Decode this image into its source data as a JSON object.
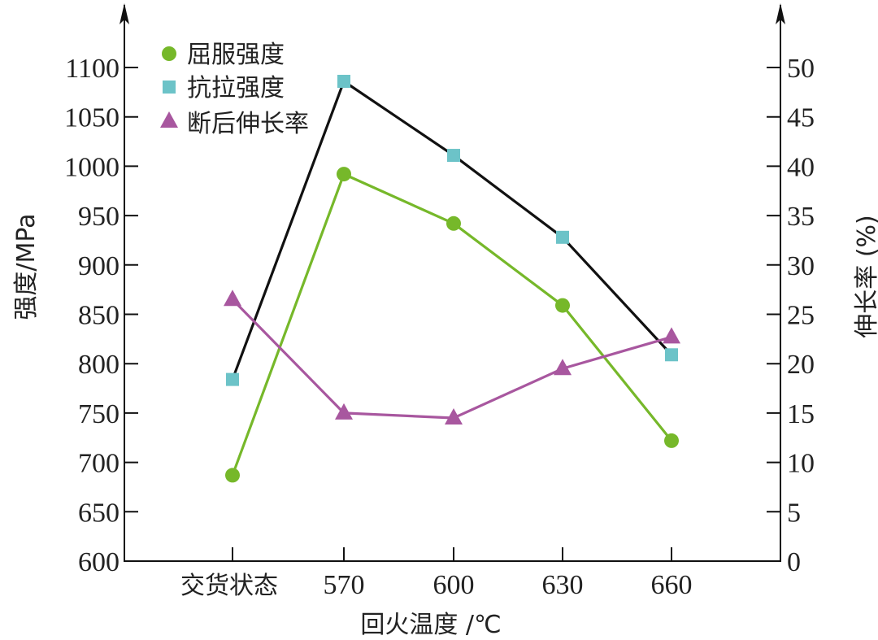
{
  "chart_data": {
    "type": "line",
    "title": "",
    "xlabel": "回火温度 /℃",
    "ylabel": "强度/MPa",
    "y2label": "伸长率 (%)",
    "categories": [
      "交货状态",
      "570",
      "600",
      "630",
      "660"
    ],
    "ylim": [
      600,
      1100
    ],
    "yticks": [
      600,
      650,
      700,
      750,
      800,
      850,
      900,
      950,
      1000,
      1050,
      1100
    ],
    "y2lim": [
      0,
      50
    ],
    "y2ticks": [
      0,
      5,
      10,
      15,
      20,
      25,
      30,
      35,
      40,
      45,
      50
    ],
    "grid": false,
    "legend_position": "upper-left",
    "series": [
      {
        "name": "屈服强度",
        "axis": "left",
        "marker": "circle",
        "color": "#76b82a",
        "line_color": "#76b82a",
        "values": [
          687,
          992,
          942,
          859,
          722
        ]
      },
      {
        "name": "抗拉强度",
        "axis": "left",
        "marker": "square",
        "color": "#6cc3c8",
        "line_color": "#111111",
        "values": [
          784,
          1086,
          1011,
          928,
          809
        ]
      },
      {
        "name": "断后伸长率",
        "axis": "right",
        "marker": "triangle",
        "color": "#a8579f",
        "line_color": "#a8579f",
        "values": [
          26.5,
          15.0,
          14.5,
          19.5,
          22.7
        ]
      }
    ]
  },
  "legend": {
    "items": [
      "屈服强度",
      "抗拉强度",
      "断后伸长率"
    ]
  },
  "axes": {
    "x_title": "回火温度 /℃",
    "y_left_title": "强度/MPa",
    "y_right_title": "伸长率 (%)"
  }
}
